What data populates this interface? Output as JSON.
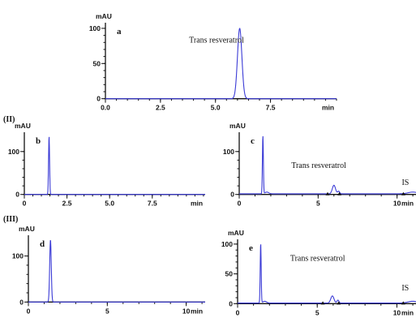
{
  "section_labels": {
    "II": "(II)",
    "III": "(III)"
  },
  "colors": {
    "trace": "#3b3bd6",
    "axis": "#111111",
    "background": "#ffffff"
  },
  "chart_data": [
    {
      "id": "a",
      "type": "line",
      "panel_label": "a",
      "unit_label": "mAU",
      "x_unit_label": "min",
      "xlim": [
        0,
        10.5
      ],
      "ylim": [
        -5,
        108
      ],
      "xticks": [
        0,
        2.5,
        5,
        7.5
      ],
      "xtick_labels": [
        "0.0",
        "2.5",
        "5.0",
        "7.5"
      ],
      "yticks": [
        0,
        50,
        100
      ],
      "ytick_labels": [
        "0",
        "50",
        "100"
      ],
      "baseline": 0,
      "peaks": [
        {
          "rt": 6.1,
          "height": 100,
          "width": 0.1
        }
      ],
      "annotations": [
        {
          "text": "Trans resveratrol",
          "x": 3.8,
          "y": 80
        }
      ],
      "markers": []
    },
    {
      "id": "b",
      "type": "line",
      "panel_label": "b",
      "unit_label": "mAU",
      "x_unit_label": "min",
      "xlim": [
        0,
        10.6
      ],
      "ylim": [
        -10,
        145
      ],
      "xticks": [
        0,
        2.5,
        5,
        7.5
      ],
      "xtick_labels": [
        "0",
        "2.5",
        "5.0",
        "7.5"
      ],
      "yticks": [
        0,
        100
      ],
      "ytick_labels": [
        "0",
        "100"
      ],
      "baseline": 0,
      "peaks": [
        {
          "rt": 1.45,
          "height": 135,
          "width": 0.03
        }
      ],
      "annotations": [],
      "markers": []
    },
    {
      "id": "c",
      "type": "line",
      "panel_label": "c",
      "unit_label": "mAU",
      "x_unit_label": "min",
      "xlim": [
        0,
        11.2
      ],
      "ylim": [
        -10,
        145
      ],
      "xticks": [
        0,
        5,
        10
      ],
      "xtick_labels": [
        "0",
        "5",
        "10"
      ],
      "yticks": [
        0,
        100
      ],
      "ytick_labels": [
        "0",
        "100"
      ],
      "baseline": 1.5,
      "peaks": [
        {
          "rt": 1.5,
          "height": 135,
          "width": 0.03
        },
        {
          "rt": 1.75,
          "height": 4,
          "width": 0.12
        },
        {
          "rt": 6.0,
          "height": 20,
          "width": 0.1
        },
        {
          "rt": 6.3,
          "height": 6,
          "width": 0.06
        },
        {
          "rt": 11.0,
          "height": 4,
          "width": 0.3
        }
      ],
      "annotations": [
        {
          "text": "Trans resveratrol",
          "x": 3.3,
          "y": 62
        },
        {
          "text": "IS",
          "x": 10.3,
          "y": 22
        }
      ],
      "markers": [
        5.6,
        6.35,
        10.4
      ]
    },
    {
      "id": "d",
      "type": "line",
      "panel_label": "d",
      "unit_label": "mAU",
      "x_unit_label": "min",
      "xlim": [
        0,
        11.2
      ],
      "ylim": [
        -10,
        145
      ],
      "xticks": [
        0,
        5,
        10
      ],
      "xtick_labels": [
        "0",
        "5",
        "10"
      ],
      "yticks": [
        0,
        100
      ],
      "ytick_labels": [
        "0",
        "100"
      ],
      "baseline": 0,
      "peaks": [
        {
          "rt": 1.4,
          "height": 135,
          "width": 0.05
        }
      ],
      "annotations": [],
      "markers": []
    },
    {
      "id": "e",
      "type": "line",
      "panel_label": "e",
      "unit_label": "mAU",
      "x_unit_label": "min",
      "xlim": [
        0,
        11.2
      ],
      "ylim": [
        -5,
        108
      ],
      "xticks": [
        0,
        5,
        10
      ],
      "xtick_labels": [
        "0",
        "5",
        "10"
      ],
      "yticks": [
        0,
        50,
        100
      ],
      "ytick_labels": [
        "0",
        "50",
        "100"
      ],
      "baseline": 1,
      "peaks": [
        {
          "rt": 1.45,
          "height": 100,
          "width": 0.03
        },
        {
          "rt": 1.7,
          "height": 3,
          "width": 0.12
        },
        {
          "rt": 5.95,
          "height": 12,
          "width": 0.1
        },
        {
          "rt": 6.3,
          "height": 5,
          "width": 0.06
        },
        {
          "rt": 11.0,
          "height": 3,
          "width": 0.3
        }
      ],
      "annotations": [
        {
          "text": "Trans resveratrol",
          "x": 3.3,
          "y": 72
        },
        {
          "text": "IS",
          "x": 10.3,
          "y": 22
        }
      ],
      "markers": [
        5.35,
        6.35,
        10.4
      ]
    }
  ]
}
